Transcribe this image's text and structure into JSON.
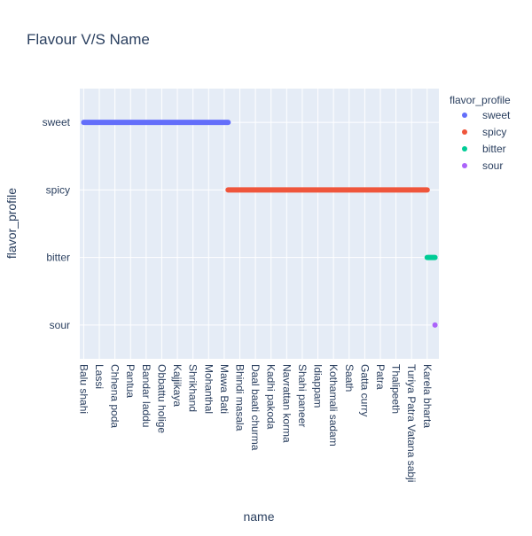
{
  "chart_data": {
    "type": "scatter",
    "title": "Flavour V/S Name",
    "xlabel": "name",
    "ylabel": "flavor_profile",
    "legend_title": "flavor_profile",
    "legend_position": "right",
    "grid": true,
    "categories_y": [
      "sweet",
      "spicy",
      "bitter",
      "sour"
    ],
    "x_tick_labels": [
      "Balu shahi",
      "Lassi",
      "Chhena poda",
      "Pantua",
      "Bandar laddu",
      "Obbattu holige",
      "Kajjikaya",
      "Shrikhand",
      "Mohanthal",
      "Mawa Bati",
      "Bhindi masala",
      "Daal baati churma",
      "Kadhi pakoda",
      "Navrattan korma",
      "Shahi paneer",
      "Idiappam",
      "Kothamali sadam",
      "Saath",
      "Gatta curry",
      "Patra",
      "Thalipeeth",
      "Turiya Patra Vatana sabji",
      "Karela bharta"
    ],
    "x_range": [
      -0.5,
      45.5
    ],
    "series": [
      {
        "name": "sweet",
        "color": "#636efa",
        "y": "sweet",
        "x": [
          0,
          18.5
        ]
      },
      {
        "name": "spicy",
        "color": "#EF553B",
        "y": "spicy",
        "x": [
          18.5,
          44
        ]
      },
      {
        "name": "bitter",
        "color": "#00cc96",
        "y": "bitter",
        "x": [
          44,
          45
        ]
      },
      {
        "name": "sour",
        "color": "#ab63fa",
        "y": "sour",
        "x": [
          45,
          45
        ]
      }
    ]
  }
}
